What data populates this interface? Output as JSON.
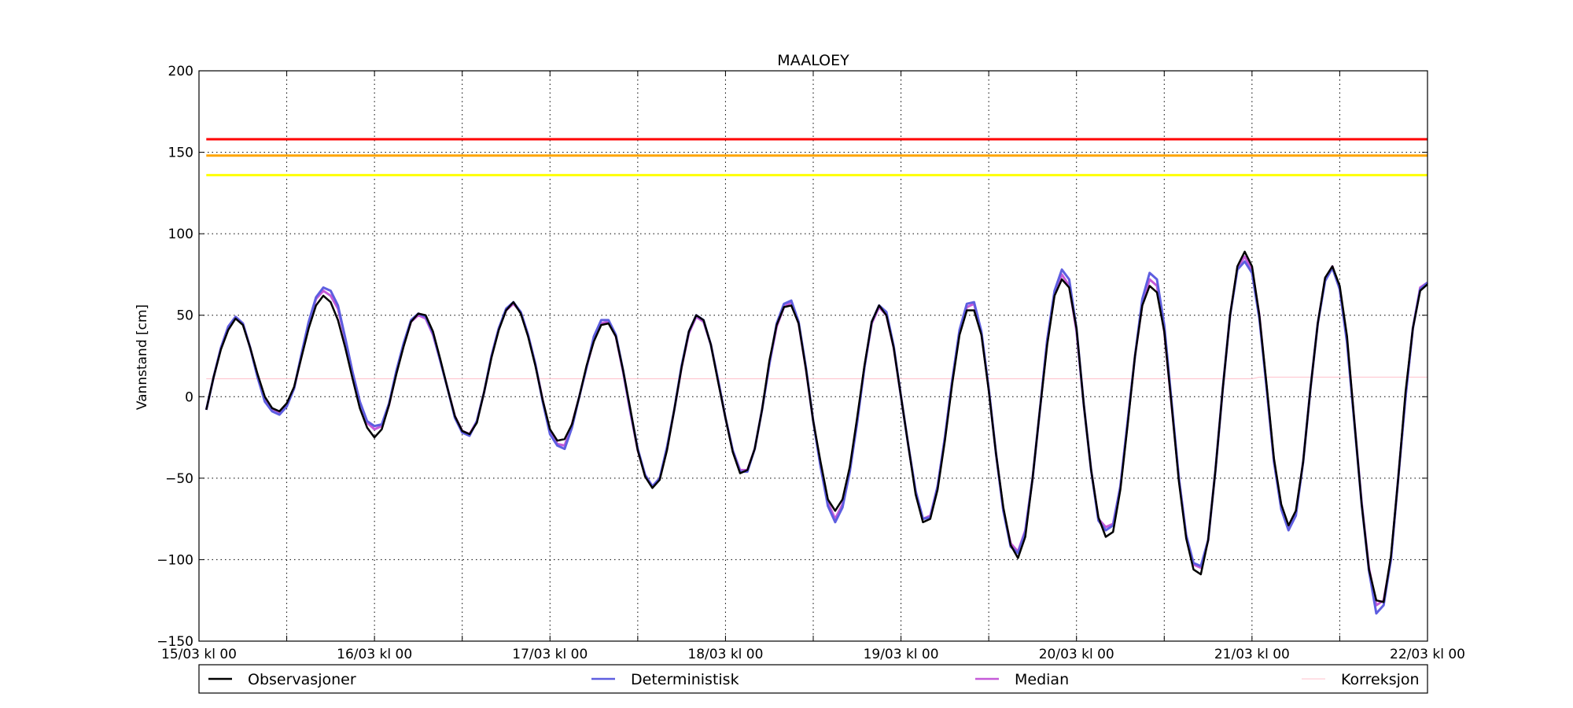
{
  "chart_data": {
    "type": "line",
    "title": "MAALOEY",
    "ylabel": "Vannstand [cm]",
    "xlabel": "",
    "ylim": [
      -150,
      200
    ],
    "xlim": [
      0,
      168
    ],
    "x_unit": "hours since 15/03 kl 00",
    "yticks": [
      -150,
      -100,
      -50,
      0,
      50,
      100,
      150,
      200
    ],
    "xticks": [
      {
        "x": 0,
        "label": "15/03 kl 00"
      },
      {
        "x": 24,
        "label": "16/03 kl 00"
      },
      {
        "x": 48,
        "label": "17/03 kl 00"
      },
      {
        "x": 72,
        "label": "18/03 kl 00"
      },
      {
        "x": 96,
        "label": "19/03 kl 00"
      },
      {
        "x": 120,
        "label": "20/03 kl 00"
      },
      {
        "x": 144,
        "label": "21/03 kl 00"
      },
      {
        "x": 168,
        "label": "22/03 kl 00"
      }
    ],
    "minor_xticks": [
      12,
      36,
      60,
      84,
      108,
      132,
      156
    ],
    "grid": true,
    "thresholds": [
      {
        "y": 158,
        "color": "#ff0000"
      },
      {
        "y": 148,
        "color": "#ffa500"
      },
      {
        "y": 136,
        "color": "#ffff00"
      }
    ],
    "legend_position": "bottom",
    "series": [
      {
        "name": "Korreksjon",
        "color": "#ffc0cb",
        "width": 1,
        "x": [
          1,
          24,
          48,
          96,
          144,
          145,
          168
        ],
        "y": [
          11,
          11,
          11,
          11,
          11,
          12,
          12
        ]
      },
      {
        "name": "Median",
        "color": "#c55ad8",
        "width": 3,
        "x": [
          1,
          2,
          3,
          4,
          5,
          6,
          7,
          8,
          9,
          10,
          11,
          12,
          13,
          14,
          15,
          16,
          17,
          18,
          19,
          20,
          21,
          22,
          23,
          24,
          25,
          26,
          27,
          28,
          29,
          30,
          31,
          32,
          33,
          34,
          35,
          36,
          37,
          38,
          39,
          40,
          41,
          42,
          43,
          44,
          45,
          46,
          47,
          48,
          49,
          50,
          51,
          52,
          53,
          54,
          55,
          56,
          57,
          58,
          59,
          60,
          61,
          62,
          63,
          64,
          65,
          66,
          67,
          68,
          69,
          70,
          71,
          72,
          73,
          74,
          75,
          76,
          77,
          78,
          79,
          80,
          81,
          82,
          83,
          84,
          85,
          86,
          87,
          88,
          89,
          90,
          91,
          92,
          93,
          94,
          95,
          96,
          97,
          98,
          99,
          100,
          101,
          102,
          103,
          104,
          105,
          106,
          107,
          108,
          109,
          110,
          111,
          112,
          113,
          114,
          115,
          116,
          117,
          118,
          119,
          120,
          121,
          122,
          123,
          124,
          125,
          126,
          127,
          128,
          129,
          130,
          131,
          132,
          133,
          134,
          135,
          136,
          137,
          138,
          139,
          140,
          141,
          142,
          143,
          144,
          145,
          146,
          147,
          148,
          149,
          150,
          151,
          152,
          153,
          154,
          155,
          156,
          157,
          158,
          159,
          160,
          161,
          162,
          163,
          164,
          165,
          166,
          167,
          168
        ],
        "y": [
          -8,
          12,
          30,
          43,
          49,
          45,
          30,
          13,
          -1,
          -8,
          -10,
          -5,
          5,
          25,
          45,
          60,
          65,
          62,
          54,
          35,
          15,
          -3,
          -16,
          -20,
          -18,
          -5,
          15,
          32,
          46,
          50,
          48,
          38,
          22,
          5,
          -12,
          -21,
          -23,
          -15,
          3,
          25,
          42,
          53,
          57,
          52,
          38,
          20,
          -2,
          -22,
          -29,
          -30,
          -17,
          0,
          18,
          35,
          45,
          46,
          37,
          15,
          -10,
          -33,
          -48,
          -55,
          -50,
          -32,
          -8,
          18,
          39,
          49,
          46,
          32,
          10,
          -13,
          -33,
          -45,
          -45,
          -32,
          -8,
          20,
          43,
          55,
          58,
          45,
          17,
          -15,
          -42,
          -65,
          -75,
          -66,
          -45,
          -15,
          18,
          45,
          55,
          50,
          30,
          0,
          -30,
          -58,
          -75,
          -73,
          -55,
          -25,
          10,
          40,
          55,
          57,
          39,
          5,
          -35,
          -70,
          -90,
          -95,
          -82,
          -50,
          -8,
          35,
          63,
          75,
          68,
          40,
          -5,
          -45,
          -75,
          -80,
          -78,
          -55,
          -15,
          25,
          57,
          72,
          68,
          40,
          -5,
          -50,
          -85,
          -103,
          -105,
          -88,
          -45,
          5,
          50,
          79,
          86,
          78,
          50,
          5,
          -40,
          -67,
          -80,
          -72,
          -40,
          5,
          45,
          72,
          80,
          66,
          34,
          -15,
          -65,
          -105,
          -128,
          -125,
          -100,
          -50,
          0,
          42,
          67,
          70
        ]
      },
      {
        "name": "Deterministisk",
        "color": "#5e5ee0",
        "width": 3,
        "x": [
          1,
          2,
          3,
          4,
          5,
          6,
          7,
          8,
          9,
          10,
          11,
          12,
          13,
          14,
          15,
          16,
          17,
          18,
          19,
          20,
          21,
          22,
          23,
          24,
          25,
          26,
          27,
          28,
          29,
          30,
          31,
          32,
          33,
          34,
          35,
          36,
          37,
          38,
          39,
          40,
          41,
          42,
          43,
          44,
          45,
          46,
          47,
          48,
          49,
          50,
          51,
          52,
          53,
          54,
          55,
          56,
          57,
          58,
          59,
          60,
          61,
          62,
          63,
          64,
          65,
          66,
          67,
          68,
          69,
          70,
          71,
          72,
          73,
          74,
          75,
          76,
          77,
          78,
          79,
          80,
          81,
          82,
          83,
          84,
          85,
          86,
          87,
          88,
          89,
          90,
          91,
          92,
          93,
          94,
          95,
          96,
          97,
          98,
          99,
          100,
          101,
          102,
          103,
          104,
          105,
          106,
          107,
          108,
          109,
          110,
          111,
          112,
          113,
          114,
          115,
          116,
          117,
          118,
          119,
          120,
          121,
          122,
          123,
          124,
          125,
          126,
          127,
          128,
          129,
          130,
          131,
          132,
          133,
          134,
          135,
          136,
          137,
          138,
          139,
          140,
          141,
          142,
          143,
          144,
          145,
          146,
          147,
          148,
          149,
          150,
          151,
          152,
          153,
          154,
          155,
          156,
          157,
          158,
          159,
          160,
          161,
          162,
          163,
          164,
          165,
          166,
          167,
          168
        ],
        "y": [
          -8,
          12,
          30,
          43,
          49,
          45,
          30,
          12,
          -3,
          -9,
          -11,
          -6,
          5,
          26,
          46,
          61,
          67,
          65,
          56,
          36,
          15,
          -3,
          -15,
          -18,
          -17,
          -4,
          16,
          33,
          47,
          51,
          49,
          39,
          22,
          5,
          -13,
          -22,
          -24,
          -15,
          3,
          25,
          42,
          54,
          58,
          52,
          38,
          20,
          -3,
          -23,
          -30,
          -32,
          -19,
          0,
          18,
          37,
          47,
          47,
          38,
          16,
          -9,
          -32,
          -48,
          -55,
          -50,
          -31,
          -8,
          19,
          40,
          50,
          47,
          32,
          10,
          -13,
          -33,
          -46,
          -46,
          -32,
          -8,
          20,
          45,
          57,
          59,
          46,
          18,
          -15,
          -43,
          -67,
          -77,
          -68,
          -46,
          -16,
          18,
          46,
          56,
          52,
          31,
          0,
          -30,
          -58,
          -75,
          -74,
          -55,
          -25,
          10,
          41,
          57,
          58,
          40,
          5,
          -35,
          -70,
          -92,
          -96,
          -83,
          -50,
          -8,
          35,
          65,
          78,
          72,
          42,
          -5,
          -45,
          -76,
          -82,
          -79,
          -55,
          -15,
          25,
          60,
          76,
          72,
          44,
          -3,
          -50,
          -85,
          -102,
          -104,
          -88,
          -45,
          5,
          50,
          78,
          83,
          76,
          48,
          5,
          -40,
          -69,
          -82,
          -73,
          -40,
          5,
          45,
          71,
          79,
          66,
          33,
          -16,
          -66,
          -107,
          -133,
          -128,
          -100,
          -50,
          0,
          42,
          66,
          70
        ]
      },
      {
        "name": "Observasjoner",
        "color": "#000000",
        "width": 2.5,
        "x": [
          1,
          2,
          3,
          4,
          5,
          6,
          7,
          8,
          9,
          10,
          11,
          12,
          13,
          14,
          15,
          16,
          17,
          18,
          19,
          20,
          21,
          22,
          23,
          24,
          25,
          26,
          27,
          28,
          29,
          30,
          31,
          32,
          33,
          34,
          35,
          36,
          37,
          38,
          39,
          40,
          41,
          42,
          43,
          44,
          45,
          46,
          47,
          48,
          49,
          50,
          51,
          52,
          53,
          54,
          55,
          56,
          57,
          58,
          59,
          60,
          61,
          62,
          63,
          64,
          65,
          66,
          67,
          68,
          69,
          70,
          71,
          72,
          73,
          74,
          75,
          76,
          77,
          78,
          79,
          80,
          81,
          82,
          83,
          84,
          85,
          86,
          87,
          88,
          89,
          90,
          91,
          92,
          93,
          94,
          95,
          96,
          97,
          98,
          99,
          100,
          101,
          102,
          103,
          104,
          105,
          106,
          107,
          108,
          109,
          110,
          111,
          112,
          113,
          114,
          115,
          116,
          117,
          118,
          119,
          120,
          121,
          122,
          123,
          124,
          125,
          126,
          127,
          128,
          129,
          130,
          131,
          132,
          133,
          134,
          135,
          136,
          137,
          138,
          139,
          140,
          141,
          142,
          143,
          144,
          145,
          146,
          147,
          148,
          149,
          150,
          151,
          152,
          153,
          154,
          155,
          156,
          157,
          158,
          159,
          160,
          161,
          162,
          163,
          164,
          165,
          166,
          167,
          168
        ],
        "y": [
          -8,
          12,
          29,
          41,
          48,
          44,
          30,
          14,
          0,
          -7,
          -9,
          -4,
          6,
          24,
          42,
          56,
          62,
          58,
          47,
          30,
          11,
          -7,
          -19,
          -25,
          -20,
          -5,
          14,
          31,
          46,
          51,
          50,
          40,
          23,
          5,
          -12,
          -21,
          -23,
          -16,
          3,
          24,
          41,
          53,
          58,
          51,
          37,
          19,
          -2,
          -20,
          -27,
          -26,
          -17,
          0,
          19,
          34,
          44,
          45,
          37,
          16,
          -8,
          -33,
          -49,
          -56,
          -51,
          -33,
          -8,
          18,
          40,
          50,
          47,
          32,
          9,
          -13,
          -34,
          -47,
          -45,
          -32,
          -8,
          22,
          44,
          55,
          56,
          45,
          17,
          -15,
          -40,
          -63,
          -70,
          -63,
          -43,
          -13,
          19,
          46,
          56,
          50,
          30,
          0,
          -30,
          -60,
          -77,
          -75,
          -57,
          -27,
          8,
          38,
          53,
          53,
          38,
          4,
          -35,
          -68,
          -91,
          -99,
          -86,
          -50,
          -8,
          32,
          62,
          72,
          67,
          42,
          -5,
          -45,
          -74,
          -86,
          -83,
          -57,
          -17,
          25,
          56,
          68,
          64,
          40,
          -5,
          -52,
          -87,
          -106,
          -109,
          -88,
          -45,
          5,
          50,
          80,
          89,
          80,
          50,
          7,
          -38,
          -66,
          -79,
          -70,
          -40,
          5,
          45,
          73,
          80,
          68,
          37,
          -15,
          -66,
          -106,
          -125,
          -126,
          -98,
          -50,
          3,
          42,
          65,
          69
        ]
      }
    ],
    "legend": [
      {
        "name": "Observasjoner",
        "color": "#000000"
      },
      {
        "name": "Deterministisk",
        "color": "#5e5ee0"
      },
      {
        "name": "Median",
        "color": "#c55ad8"
      },
      {
        "name": "Korreksjon",
        "color": "#ffc0cb"
      }
    ]
  }
}
